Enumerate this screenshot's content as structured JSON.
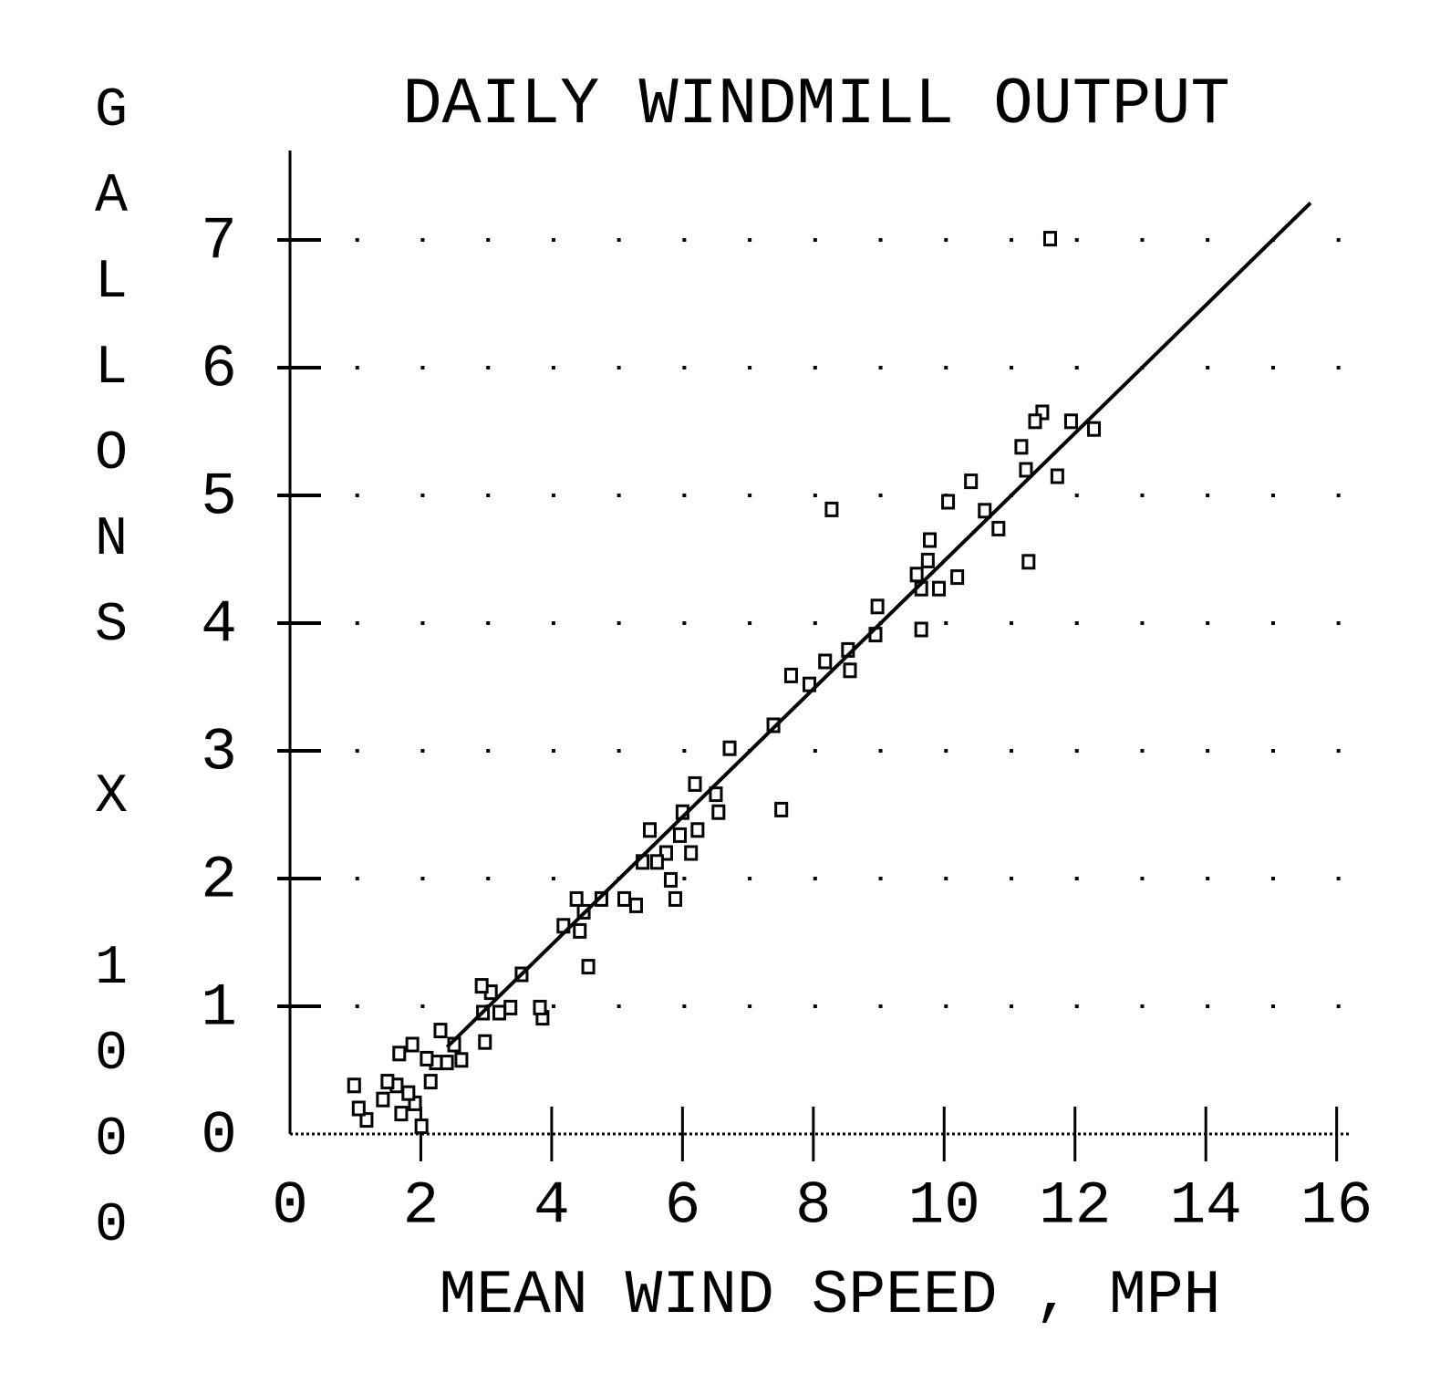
{
  "chart_data": {
    "type": "scatter",
    "title": "DAILY WINDMILL OUTPUT",
    "x_label": "MEAN WIND SPEED , MPH",
    "y_label": "GALLONS X 1000",
    "xlim": [
      0,
      16.2
    ],
    "ylim": [
      0,
      7.7
    ],
    "xticks": [
      0,
      2,
      4,
      6,
      8,
      10,
      12,
      14,
      16
    ],
    "yticks": [
      0,
      1,
      2,
      3,
      4,
      5,
      6,
      7
    ],
    "grid": true,
    "series": [
      {
        "color": "#000000",
        "marker": "square",
        "x": [
          11.62,
          8.28,
          7.51,
          11.29,
          11.73,
          12.29,
          11.94,
          11.5,
          11.39,
          11.25,
          11.18,
          10.83,
          10.62,
          10.41,
          10.06,
          10.2,
          9.92,
          9.78,
          9.75,
          9.65,
          9.65,
          9.58,
          8.95,
          8.98,
          8.56,
          8.53,
          8.18,
          7.94,
          7.66,
          7.39,
          6.72,
          6.55,
          6.51,
          6.19,
          6.23,
          6.13,
          6.0,
          5.96,
          5.89,
          5.82,
          5.75,
          5.61,
          5.5,
          5.39,
          5.29,
          5.11,
          4.76,
          4.56,
          4.49,
          4.38,
          4.43,
          4.18,
          3.86,
          3.82,
          3.54,
          3.37,
          3.2,
          3.07,
          2.93,
          2.95,
          2.98,
          2.62,
          2.51,
          2.4,
          2.3,
          2.23,
          2.15,
          2.09,
          1.87,
          1.67,
          2.01,
          1.91,
          1.81,
          1.7,
          1.63,
          1.49,
          1.42,
          1.17,
          1.05,
          0.98
        ],
        "values": [
          7.01,
          4.89,
          2.54,
          4.48,
          5.15,
          5.52,
          5.58,
          5.65,
          5.58,
          5.2,
          5.38,
          4.74,
          4.88,
          5.11,
          4.95,
          4.36,
          4.27,
          4.65,
          4.49,
          4.27,
          3.95,
          4.38,
          3.91,
          4.13,
          3.63,
          3.79,
          3.7,
          3.52,
          3.59,
          3.2,
          3.02,
          2.52,
          2.66,
          2.74,
          2.38,
          2.2,
          2.52,
          2.34,
          1.84,
          1.99,
          2.2,
          2.13,
          2.38,
          2.13,
          1.79,
          1.84,
          1.84,
          1.31,
          1.74,
          1.84,
          1.59,
          1.63,
          0.91,
          0.99,
          1.25,
          0.99,
          0.95,
          1.11,
          1.16,
          0.95,
          0.72,
          0.58,
          0.7,
          0.56,
          0.81,
          0.56,
          0.41,
          0.59,
          0.7,
          0.63,
          0.06,
          0.24,
          0.32,
          0.16,
          0.38,
          0.41,
          0.27,
          0.11,
          0.2,
          0.38
        ]
      },
      {
        "color": "#000000",
        "mode": "line",
        "x": [
          2.4,
          15.6
        ],
        "values": [
          0.68,
          7.29
        ]
      }
    ]
  }
}
